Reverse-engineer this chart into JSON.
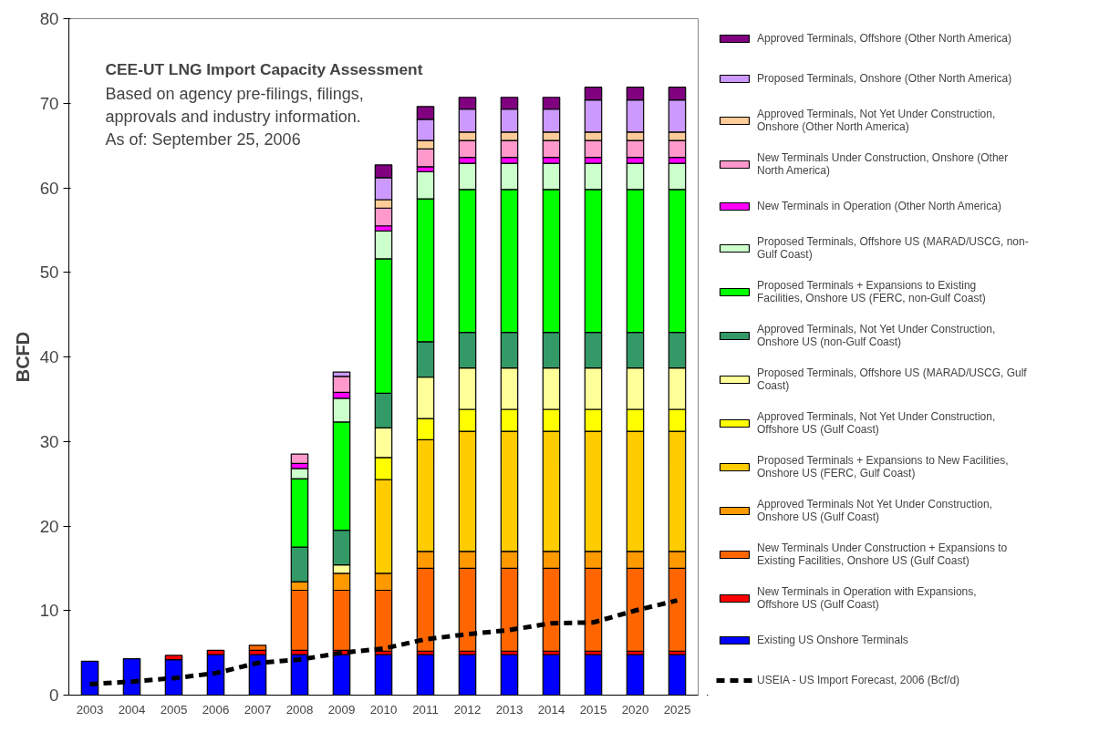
{
  "chart_data": {
    "type": "bar",
    "stacked": true,
    "title": "CEE-UT LNG Import Capacity Assessment",
    "subtitle": "Based on agency pre-filings, filings, approvals and industry information.",
    "annotations": [
      "As of: September 25, 2006"
    ],
    "ylabel": "BCFD",
    "categories": [
      "2003",
      "2004",
      "2005",
      "2006",
      "2007",
      "2008",
      "2009",
      "2010",
      "2011",
      "2012",
      "2013",
      "2014",
      "2015",
      "2020",
      "2025"
    ],
    "ylim": [
      0,
      80
    ],
    "yticks": [
      0,
      10,
      20,
      30,
      40,
      50,
      60,
      70,
      80
    ],
    "grid": false,
    "legend": "right",
    "series": [
      {
        "name": "Existing US Onshore Terminals",
        "color": "#0000ff",
        "values": [
          4.0,
          4.3,
          4.2,
          4.8,
          4.8,
          4.8,
          4.8,
          4.8,
          4.8,
          4.8,
          4.8,
          4.8,
          4.8,
          4.8,
          4.8
        ]
      },
      {
        "name": "New Terminals in Operation with Expansions, Offshore US (Gulf Coast)",
        "color": "#ff0000",
        "values": [
          0,
          0,
          0.5,
          0.5,
          0.5,
          0.5,
          0.5,
          0.4,
          0.4,
          0.4,
          0.4,
          0.4,
          0.4,
          0.4,
          0.4
        ]
      },
      {
        "name": "New Terminals Under Construction + Expansions to Existing Facilities, Onshore US (Gulf Coast)",
        "color": "#ff6600",
        "values": [
          0,
          0,
          0,
          0,
          0.6,
          7.1,
          7.1,
          7.2,
          9.8,
          9.8,
          9.8,
          9.8,
          9.8,
          9.8,
          9.8
        ]
      },
      {
        "name": "Approved Terminals Not Yet Under Construction, Onshore US (Gulf Coast)",
        "color": "#ff9900",
        "values": [
          0,
          0,
          0,
          0,
          0,
          1.0,
          2.0,
          2.0,
          2.0,
          2.0,
          2.0,
          2.0,
          2.0,
          2.0,
          2.0
        ]
      },
      {
        "name": "Proposed Terminals + Expansions to New Facilities, Onshore US (FERC, Gulf Coast)",
        "color": "#ffcc00",
        "values": [
          0,
          0,
          0,
          0,
          0,
          0,
          0,
          11.1,
          13.2,
          14.2,
          14.2,
          14.2,
          14.2,
          14.2,
          14.2
        ]
      },
      {
        "name": "Approved Terminals, Not Yet Under Construction, Offshore US (Gulf Coast)",
        "color": "#ffff00",
        "values": [
          0,
          0,
          0,
          0,
          0,
          0,
          0,
          2.6,
          2.5,
          2.6,
          2.6,
          2.6,
          2.6,
          2.6,
          2.6
        ]
      },
      {
        "name": "Proposed Terminals, Offshore US (MARAD/USCG, Gulf Coast)",
        "color": "#ffff99",
        "values": [
          0,
          0,
          0,
          0,
          0,
          0,
          1.0,
          3.5,
          4.9,
          4.9,
          4.9,
          4.9,
          4.9,
          4.9,
          4.9
        ]
      },
      {
        "name": "Approved Terminals, Not Yet Under Construction, Onshore US (non-Gulf Coast)",
        "color": "#339966",
        "values": [
          0,
          0,
          0,
          0,
          0,
          4.1,
          4.1,
          4.1,
          4.2,
          4.2,
          4.2,
          4.2,
          4.2,
          4.2,
          4.2
        ]
      },
      {
        "name": "Proposed Terminals + Expansions to Existing Facilities, Onshore US (FERC, non-Gulf Coast)",
        "color": "#00ff00",
        "values": [
          0,
          0,
          0,
          0,
          0,
          8.1,
          12.8,
          15.9,
          16.9,
          16.9,
          16.9,
          16.9,
          16.9,
          16.9,
          16.9
        ]
      },
      {
        "name": "Proposed Terminals, Offshore US (MARAD/USCG, non-Gulf Coast)",
        "color": "#ccffcc",
        "values": [
          0,
          0,
          0,
          0,
          0,
          1.2,
          2.8,
          3.3,
          3.2,
          3.1,
          3.1,
          3.1,
          3.1,
          3.1,
          3.1
        ]
      },
      {
        "name": "New Terminals in Operation (Other North America)",
        "color": "#ff00ff",
        "values": [
          0,
          0,
          0,
          0,
          0,
          0.6,
          0.7,
          0.6,
          0.6,
          0.7,
          0.7,
          0.7,
          0.7,
          0.7,
          0.7
        ]
      },
      {
        "name": "New Terminals Under Construction, Onshore (Other North America)",
        "color": "#ff99cc",
        "values": [
          0,
          0,
          0,
          0,
          0,
          1.1,
          1.9,
          2.1,
          2.1,
          2.0,
          2.0,
          2.0,
          2.0,
          2.0,
          2.0
        ]
      },
      {
        "name": "Approved Terminals, Not Yet Under Construction, Onshore (Other North America)",
        "color": "#ffcc99",
        "values": [
          0,
          0,
          0,
          0,
          0,
          0,
          0,
          1.0,
          1.0,
          1.0,
          1.0,
          1.0,
          1.0,
          1.0,
          1.0
        ]
      },
      {
        "name": "Proposed Terminals, Onshore (Other North America)",
        "color": "#cc99ff",
        "values": [
          0,
          0,
          0,
          0,
          0,
          0,
          0.5,
          2.6,
          2.5,
          2.7,
          2.7,
          2.7,
          3.8,
          3.8,
          3.8
        ]
      },
      {
        "name": "Approved Terminals, Offshore (Other North America)",
        "color": "#800080",
        "values": [
          0,
          0,
          0,
          0,
          0,
          0,
          0,
          1.5,
          1.5,
          1.4,
          1.4,
          1.4,
          1.5,
          1.5,
          1.5
        ]
      },
      {
        "name": "USEIA - US Import Forecast, 2006 (Bcf/d)",
        "type": "line",
        "color": "#000000",
        "line_style": "dashed",
        "marker": "none",
        "values": [
          1.3,
          1.6,
          2.0,
          2.6,
          3.8,
          4.2,
          5.0,
          5.5,
          6.6,
          7.2,
          7.7,
          8.5,
          8.6,
          10.0,
          11.2
        ]
      }
    ]
  }
}
